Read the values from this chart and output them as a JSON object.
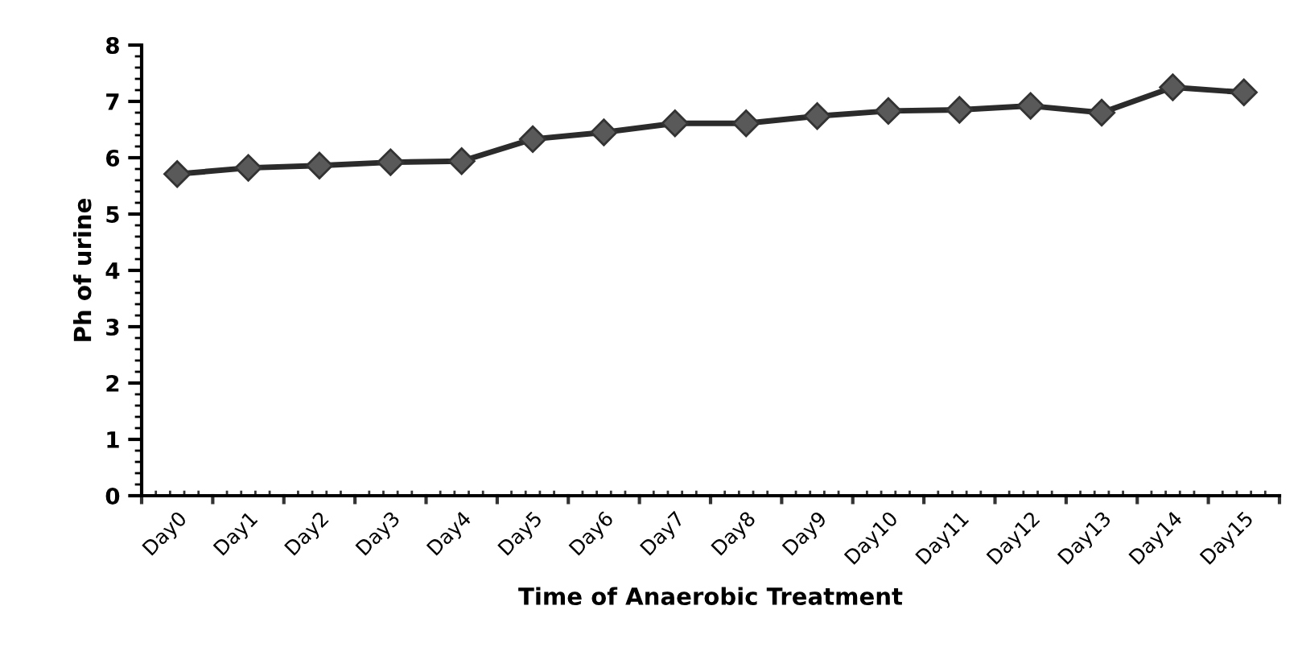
{
  "chart_data": {
    "type": "line",
    "xlabel": "Time of Anaerobic Treatment",
    "ylabel": "Ph of urine",
    "categories": [
      "Day0",
      "Day1",
      "Day2",
      "Day3",
      "Day4",
      "Day5",
      "Day6",
      "Day7",
      "Day8",
      "Day9",
      "Day10",
      "Day11",
      "Day12",
      "Day13",
      "Day14",
      "Day15"
    ],
    "series": [
      {
        "color": "#2b2b2b",
        "values": [
          5.71,
          5.82,
          5.86,
          5.92,
          5.94,
          6.33,
          6.45,
          6.61,
          6.61,
          6.74,
          6.83,
          6.85,
          6.92,
          6.8,
          7.25,
          7.16
        ]
      }
    ],
    "ylim": [
      0,
      8
    ],
    "yticks": [
      0,
      1,
      2,
      3,
      4,
      5,
      6,
      7,
      8
    ],
    "marker": "diamond",
    "line_style": "solid",
    "grid": false,
    "legend": false
  }
}
